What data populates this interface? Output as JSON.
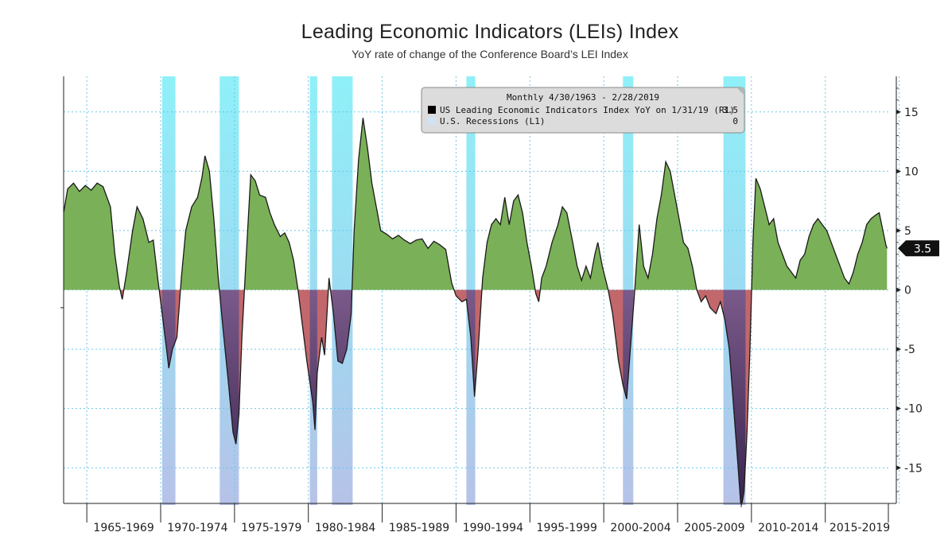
{
  "title": "Leading Economic Indicators (LEIs) Index",
  "subtitle": "YoY rate of change of the Conference Board’s LEI Index",
  "legend": {
    "header": "Monthly 4/30/1963 - 2/28/2019",
    "items": [
      {
        "label": "US Leading Economic Indicators Index YoY on 1/31/19 (R1)",
        "value": "3.5",
        "color": "#000000"
      },
      {
        "label": "U.S. Recessions (L1)",
        "value": "0",
        "color": "#cfe3f7"
      }
    ]
  },
  "last_value_tag": "3.5",
  "colors": {
    "positive_fill": "#7ab058",
    "negative_fill": "#c2676b",
    "recession_fill": "#98ecf6",
    "line": "#1a1a1a",
    "grid": "#6bc7e6"
  },
  "chart_data": {
    "type": "area",
    "ylim": [
      -18,
      18
    ],
    "yticks": [
      15,
      10,
      5,
      0,
      -5,
      -10,
      -15
    ],
    "ytick_labels": [
      "15",
      "10",
      "5",
      "0",
      "-5",
      "-10",
      "-15"
    ],
    "xlim": [
      1963.33,
      2019.17
    ],
    "x_period_labels": [
      "1965-1969",
      "1970-1974",
      "1975-1979",
      "1980-1984",
      "1985-1989",
      "1990-1994",
      "1995-1999",
      "2000-2004",
      "2005-2009",
      "2010-2014",
      "2015-2019"
    ],
    "recessions": [
      {
        "start": 1970.0,
        "end": 1970.9
      },
      {
        "start": 1973.9,
        "end": 1975.2
      },
      {
        "start": 1980.0,
        "end": 1980.5
      },
      {
        "start": 1981.5,
        "end": 1982.9
      },
      {
        "start": 1990.6,
        "end": 1991.2
      },
      {
        "start": 2001.2,
        "end": 2001.9
      },
      {
        "start": 2008.0,
        "end": 2009.5
      }
    ],
    "series": [
      {
        "name": "US Leading Economic Indicators Index YoY",
        "points": [
          [
            1963.33,
            6.5
          ],
          [
            1963.6,
            8.5
          ],
          [
            1964.0,
            9.0
          ],
          [
            1964.4,
            8.3
          ],
          [
            1964.8,
            8.8
          ],
          [
            1965.2,
            8.4
          ],
          [
            1965.6,
            9.0
          ],
          [
            1966.0,
            8.7
          ],
          [
            1966.5,
            7.0
          ],
          [
            1966.8,
            3.0
          ],
          [
            1967.1,
            0.3
          ],
          [
            1967.3,
            -0.8
          ],
          [
            1967.6,
            1.5
          ],
          [
            1968.0,
            5.0
          ],
          [
            1968.3,
            7.0
          ],
          [
            1968.7,
            6.0
          ],
          [
            1969.1,
            4.0
          ],
          [
            1969.4,
            4.2
          ],
          [
            1969.7,
            1.0
          ],
          [
            1969.9,
            -1.0
          ],
          [
            1970.3,
            -5.0
          ],
          [
            1970.45,
            -6.6
          ],
          [
            1970.7,
            -5.0
          ],
          [
            1971.0,
            -4.0
          ],
          [
            1971.3,
            1.0
          ],
          [
            1971.6,
            5.0
          ],
          [
            1972.0,
            7.0
          ],
          [
            1972.4,
            7.8
          ],
          [
            1972.7,
            9.5
          ],
          [
            1972.9,
            11.3
          ],
          [
            1973.2,
            10.0
          ],
          [
            1973.5,
            6.0
          ],
          [
            1973.8,
            1.0
          ],
          [
            1974.1,
            -3.0
          ],
          [
            1974.5,
            -8.0
          ],
          [
            1974.8,
            -12.0
          ],
          [
            1975.0,
            -13.0
          ],
          [
            1975.2,
            -10.5
          ],
          [
            1975.4,
            -4.0
          ],
          [
            1975.7,
            3.0
          ],
          [
            1976.0,
            9.7
          ],
          [
            1976.3,
            9.2
          ],
          [
            1976.6,
            8.0
          ],
          [
            1977.0,
            7.8
          ],
          [
            1977.3,
            6.5
          ],
          [
            1977.6,
            5.5
          ],
          [
            1978.0,
            4.5
          ],
          [
            1978.3,
            4.8
          ],
          [
            1978.6,
            4.0
          ],
          [
            1978.9,
            2.5
          ],
          [
            1979.2,
            0.0
          ],
          [
            1979.5,
            -3.0
          ],
          [
            1979.8,
            -6.0
          ],
          [
            1980.2,
            -9.5
          ],
          [
            1980.35,
            -11.8
          ],
          [
            1980.5,
            -7.0
          ],
          [
            1980.8,
            -4.0
          ],
          [
            1981.0,
            -5.5
          ],
          [
            1981.3,
            1.0
          ],
          [
            1981.6,
            -2.0
          ],
          [
            1981.9,
            -6.0
          ],
          [
            1982.2,
            -6.2
          ],
          [
            1982.5,
            -5.0
          ],
          [
            1982.8,
            -2.0
          ],
          [
            1983.0,
            5.0
          ],
          [
            1983.3,
            11.0
          ],
          [
            1983.6,
            14.5
          ],
          [
            1983.9,
            12.0
          ],
          [
            1984.2,
            9.0
          ],
          [
            1984.5,
            7.0
          ],
          [
            1984.8,
            5.0
          ],
          [
            1985.2,
            4.7
          ],
          [
            1985.6,
            4.3
          ],
          [
            1986.0,
            4.6
          ],
          [
            1986.4,
            4.2
          ],
          [
            1986.8,
            3.9
          ],
          [
            1987.2,
            4.2
          ],
          [
            1987.6,
            4.3
          ],
          [
            1988.0,
            3.5
          ],
          [
            1988.4,
            4.1
          ],
          [
            1988.8,
            3.8
          ],
          [
            1989.2,
            3.4
          ],
          [
            1989.6,
            0.6
          ],
          [
            1989.9,
            -0.5
          ],
          [
            1990.3,
            -1.0
          ],
          [
            1990.6,
            -0.8
          ],
          [
            1990.9,
            -4.0
          ],
          [
            1991.15,
            -9.0
          ],
          [
            1991.4,
            -5.0
          ],
          [
            1991.7,
            1.0
          ],
          [
            1992.0,
            4.0
          ],
          [
            1992.3,
            5.5
          ],
          [
            1992.6,
            6.0
          ],
          [
            1992.9,
            5.5
          ],
          [
            1993.2,
            7.8
          ],
          [
            1993.5,
            5.5
          ],
          [
            1993.8,
            7.5
          ],
          [
            1994.1,
            8.0
          ],
          [
            1994.4,
            6.5
          ],
          [
            1994.7,
            4.0
          ],
          [
            1995.0,
            2.0
          ],
          [
            1995.3,
            -0.3
          ],
          [
            1995.5,
            -1.0
          ],
          [
            1995.7,
            1.0
          ],
          [
            1996.0,
            2.0
          ],
          [
            1996.4,
            4.0
          ],
          [
            1996.8,
            5.5
          ],
          [
            1997.1,
            7.0
          ],
          [
            1997.4,
            6.5
          ],
          [
            1997.8,
            4.0
          ],
          [
            1998.1,
            2.0
          ],
          [
            1998.4,
            0.8
          ],
          [
            1998.7,
            2.0
          ],
          [
            1999.0,
            1.0
          ],
          [
            1999.3,
            3.0
          ],
          [
            1999.5,
            4.0
          ],
          [
            1999.8,
            2.0
          ],
          [
            2000.2,
            0.0
          ],
          [
            2000.5,
            -2.0
          ],
          [
            2000.9,
            -6.0
          ],
          [
            2001.2,
            -8.0
          ],
          [
            2001.45,
            -9.2
          ],
          [
            2001.7,
            -5.0
          ],
          [
            2002.0,
            0.0
          ],
          [
            2002.3,
            5.5
          ],
          [
            2002.6,
            2.0
          ],
          [
            2002.9,
            1.0
          ],
          [
            2003.2,
            3.0
          ],
          [
            2003.5,
            6.0
          ],
          [
            2003.8,
            8.0
          ],
          [
            2004.1,
            10.8
          ],
          [
            2004.4,
            10.0
          ],
          [
            2004.7,
            8.0
          ],
          [
            2005.0,
            6.0
          ],
          [
            2005.3,
            4.0
          ],
          [
            2005.6,
            3.5
          ],
          [
            2005.9,
            2.0
          ],
          [
            2006.2,
            0.0
          ],
          [
            2006.5,
            -1.0
          ],
          [
            2006.8,
            -0.5
          ],
          [
            2007.1,
            -1.5
          ],
          [
            2007.5,
            -2.0
          ],
          [
            2007.8,
            -1.0
          ],
          [
            2008.1,
            -2.5
          ],
          [
            2008.4,
            -5.0
          ],
          [
            2008.7,
            -10.0
          ],
          [
            2009.0,
            -15.0
          ],
          [
            2009.2,
            -18.5
          ],
          [
            2009.4,
            -17.0
          ],
          [
            2009.6,
            -12.0
          ],
          [
            2009.8,
            -5.0
          ],
          [
            2010.0,
            4.0
          ],
          [
            2010.2,
            9.4
          ],
          [
            2010.5,
            8.5
          ],
          [
            2010.8,
            7.0
          ],
          [
            2011.1,
            5.5
          ],
          [
            2011.4,
            6.0
          ],
          [
            2011.7,
            4.0
          ],
          [
            2012.0,
            3.0
          ],
          [
            2012.3,
            2.0
          ],
          [
            2012.6,
            1.5
          ],
          [
            2012.9,
            1.0
          ],
          [
            2013.2,
            2.5
          ],
          [
            2013.5,
            3.0
          ],
          [
            2013.8,
            4.5
          ],
          [
            2014.1,
            5.5
          ],
          [
            2014.4,
            6.0
          ],
          [
            2014.7,
            5.5
          ],
          [
            2015.0,
            5.0
          ],
          [
            2015.3,
            4.0
          ],
          [
            2015.6,
            3.0
          ],
          [
            2015.9,
            2.0
          ],
          [
            2016.2,
            1.0
          ],
          [
            2016.5,
            0.5
          ],
          [
            2016.8,
            1.5
          ],
          [
            2017.1,
            3.0
          ],
          [
            2017.4,
            4.0
          ],
          [
            2017.7,
            5.5
          ],
          [
            2018.0,
            6.0
          ],
          [
            2018.3,
            6.3
          ],
          [
            2018.55,
            6.5
          ],
          [
            2018.8,
            5.0
          ],
          [
            2019.0,
            3.8
          ],
          [
            2019.08,
            3.5
          ]
        ]
      }
    ]
  }
}
